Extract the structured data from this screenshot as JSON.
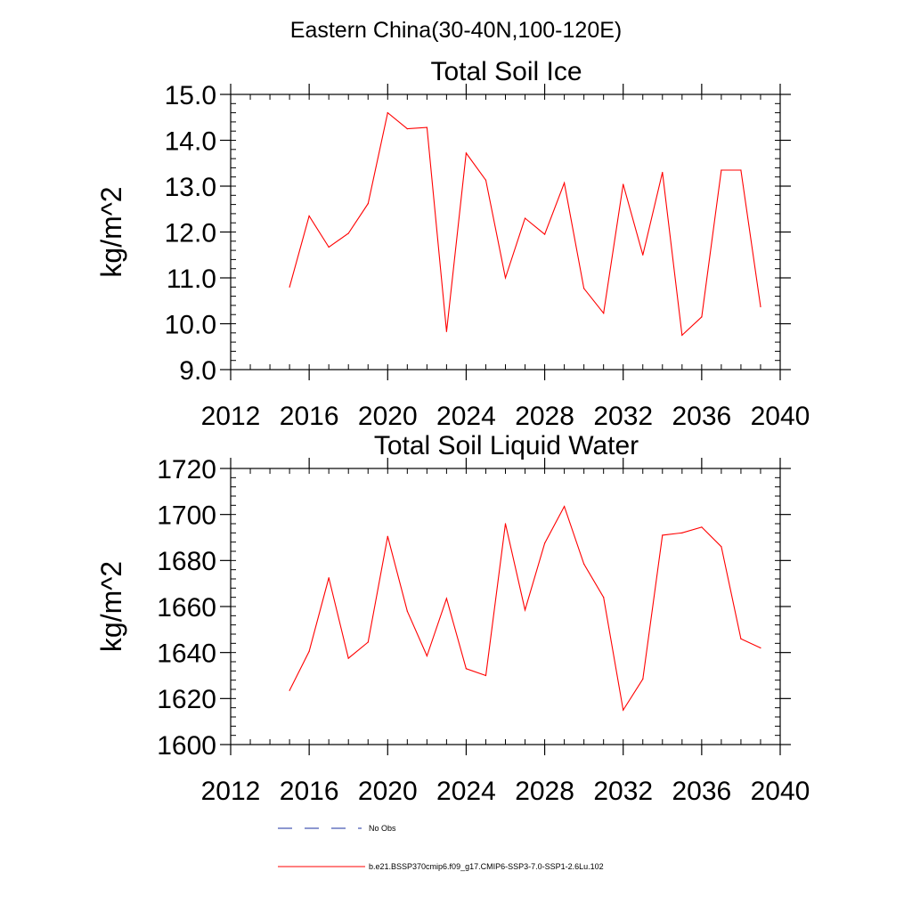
{
  "figure": {
    "main_title": "Eastern China(30-40N,100-120E)"
  },
  "colors": {
    "series_line": "#ff0000",
    "no_obs_line": "#1a2fa0",
    "axis": "#000000",
    "background": "#ffffff"
  },
  "chart_data": [
    {
      "type": "line",
      "title": "Total Soil Ice",
      "xlabel": "",
      "ylabel": "kg/m^2",
      "xlim": [
        2012,
        2040
      ],
      "ylim": [
        9.0,
        15.0
      ],
      "x_ticks": [
        2012,
        2016,
        2020,
        2024,
        2028,
        2032,
        2036,
        2040
      ],
      "x_tick_labels": [
        "2012",
        "2016",
        "2020",
        "2024",
        "2028",
        "2032",
        "2036",
        "2040"
      ],
      "y_ticks": [
        9,
        10,
        11,
        12,
        13,
        14,
        15
      ],
      "y_tick_labels": [
        "9.0",
        "10.0",
        "11.0",
        "12.0",
        "13.0",
        "14.0",
        "15.0"
      ],
      "grid": false,
      "x": [
        2015,
        2016,
        2017,
        2018,
        2019,
        2020,
        2021,
        2022,
        2023,
        2024,
        2025,
        2026,
        2027,
        2028,
        2029,
        2030,
        2031,
        2032,
        2033,
        2034,
        2035,
        2036,
        2037,
        2038,
        2039
      ],
      "series": [
        {
          "name": "b.e21.BSSP370cmip6.f09_g17.CMIP6-SSP3-7.0-SSP1-2.6Lu.102",
          "values": [
            10.8,
            12.35,
            11.67,
            11.97,
            12.62,
            14.6,
            14.25,
            14.28,
            9.83,
            13.72,
            13.13,
            11.0,
            12.3,
            11.95,
            13.07,
            10.77,
            10.23,
            13.04,
            11.5,
            13.3,
            9.75,
            10.15,
            13.35,
            13.35,
            10.37
          ]
        }
      ]
    },
    {
      "type": "line",
      "title": "Total Soil Liquid Water",
      "xlabel": "",
      "ylabel": "kg/m^2",
      "xlim": [
        2012,
        2040
      ],
      "ylim": [
        1600,
        1720
      ],
      "x_ticks": [
        2012,
        2016,
        2020,
        2024,
        2028,
        2032,
        2036,
        2040
      ],
      "x_tick_labels": [
        "2012",
        "2016",
        "2020",
        "2024",
        "2028",
        "2032",
        "2036",
        "2040"
      ],
      "y_ticks": [
        1600,
        1620,
        1640,
        1660,
        1680,
        1700,
        1720
      ],
      "y_tick_labels": [
        "1600",
        "1620",
        "1640",
        "1660",
        "1680",
        "1700",
        "1720"
      ],
      "grid": false,
      "x": [
        2015,
        2016,
        2017,
        2018,
        2019,
        2020,
        2021,
        2022,
        2023,
        2024,
        2025,
        2026,
        2027,
        2028,
        2029,
        2030,
        2031,
        2032,
        2033,
        2034,
        2035,
        2036,
        2037,
        2038,
        2039
      ],
      "series": [
        {
          "name": "b.e21.BSSP370cmip6.f09_g17.CMIP6-SSP3-7.0-SSP1-2.6Lu.102",
          "values": [
            1623.5,
            1640.5,
            1672.5,
            1637.5,
            1644.5,
            1690.5,
            1658,
            1638.5,
            1663.5,
            1633,
            1630,
            1696,
            1658.5,
            1687.5,
            1703.5,
            1678.5,
            1664,
            1615,
            1628.5,
            1691,
            1692,
            1694.5,
            1686,
            1646,
            1642
          ]
        }
      ]
    }
  ],
  "legend": {
    "placement": "bottom",
    "entries": [
      {
        "label": "No Obs",
        "style": "dashed",
        "color": "#1a2fa0"
      },
      {
        "label": "b.e21.BSSP370cmip6.f09_g17.CMIP6-SSP3-7.0-SSP1-2.6Lu.102",
        "style": "solid",
        "color": "#ff0000"
      }
    ]
  }
}
